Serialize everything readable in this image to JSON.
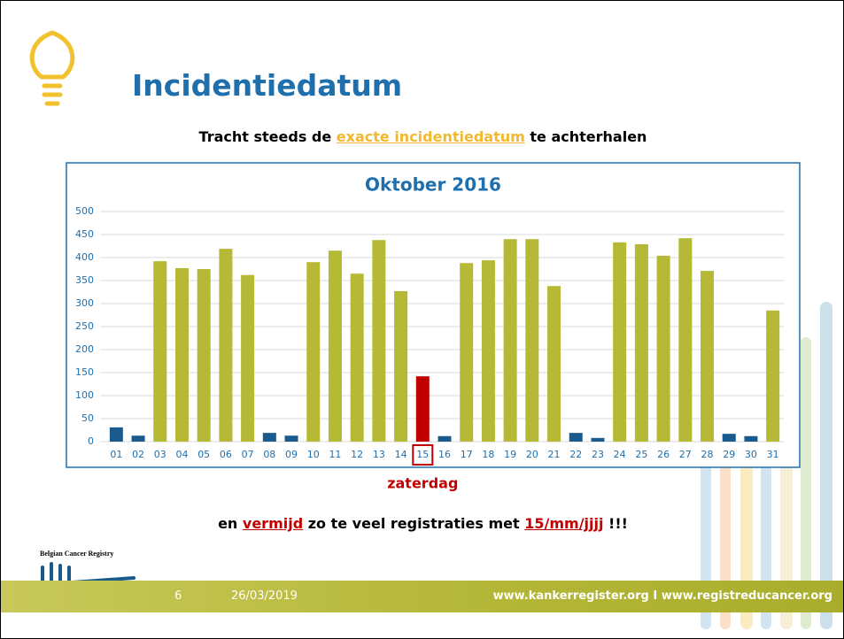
{
  "title": "Incidentiedatum",
  "subtitle": [
    "Tracht steeds de",
    "exacte incidentiedatum",
    "te achterhalen"
  ],
  "chart_data": {
    "type": "bar",
    "title": "Oktober 2016",
    "categories": [
      "01",
      "02",
      "03",
      "04",
      "05",
      "06",
      "07",
      "08",
      "09",
      "10",
      "11",
      "12",
      "13",
      "14",
      "15",
      "16",
      "17",
      "18",
      "19",
      "20",
      "21",
      "22",
      "23",
      "24",
      "25",
      "26",
      "27",
      "28",
      "29",
      "30",
      "31"
    ],
    "values": [
      31,
      13,
      392,
      377,
      375,
      419,
      362,
      19,
      13,
      390,
      415,
      365,
      438,
      327,
      142,
      12,
      388,
      394,
      440,
      440,
      338,
      19,
      8,
      433,
      429,
      404,
      442,
      371,
      17,
      12,
      285
    ],
    "colors": [
      "#1b5a8c",
      "#1b5a8c",
      "#b5b935",
      "#b5b935",
      "#b5b935",
      "#b5b935",
      "#b5b935",
      "#1b5a8c",
      "#1b5a8c",
      "#b5b935",
      "#b5b935",
      "#b5b935",
      "#b5b935",
      "#b5b935",
      "#c00000",
      "#1b5a8c",
      "#b5b935",
      "#b5b935",
      "#b5b935",
      "#b5b935",
      "#b5b935",
      "#1b5a8c",
      "#1b5a8c",
      "#b5b935",
      "#b5b935",
      "#b5b935",
      "#b5b935",
      "#b5b935",
      "#1b5a8c",
      "#1b5a8c",
      "#b5b935"
    ],
    "ylim": [
      0,
      500
    ],
    "yticks": [
      0,
      50,
      100,
      150,
      200,
      250,
      300,
      350,
      400,
      450,
      500
    ],
    "grid": true,
    "annotation": "zaterdag"
  },
  "note": [
    "en",
    "vermijd",
    "zo te veel registraties met",
    "15/mm/jjjj",
    "!!!"
  ],
  "footer": {
    "organization": "Belgian Cancer Registry",
    "page": "6",
    "date": "26/03/2019",
    "url": "www.kankerregister.org  I  www.registreducancer.org"
  }
}
